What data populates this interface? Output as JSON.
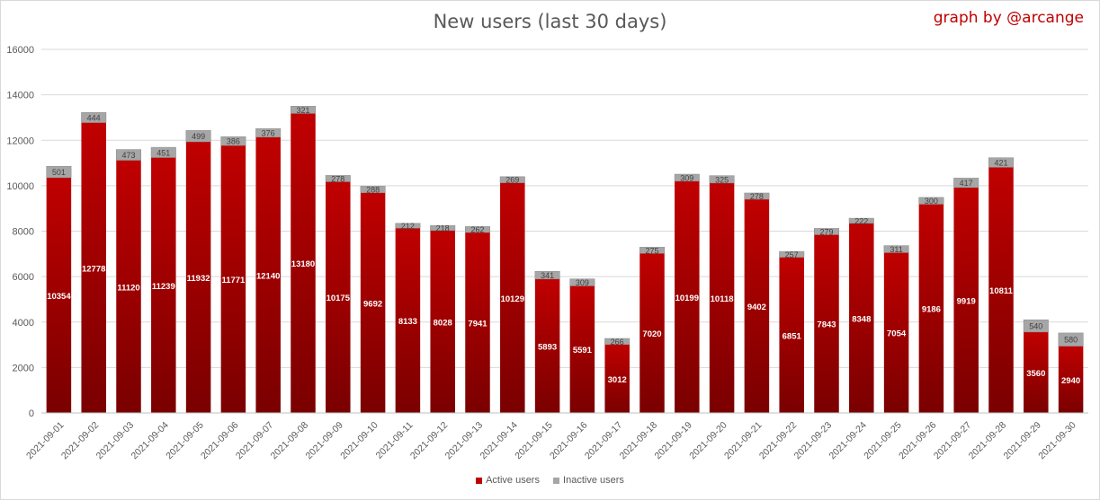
{
  "title": "New users (last 30 days)",
  "credit": "graph by @arcange",
  "colors": {
    "active": "#c00000",
    "active_dark": "#7a0000",
    "inactive": "#a6a6a6",
    "grid": "#d9d9d9",
    "axis_text": "#595959"
  },
  "legend": {
    "active_label": "Active users",
    "inactive_label": "Inactive users"
  },
  "chart_data": {
    "type": "bar",
    "stacked": true,
    "title": "New users (last 30 days)",
    "categories": [
      "2021-09-01",
      "2021-09-02",
      "2021-09-03",
      "2021-09-04",
      "2021-09-05",
      "2021-09-06",
      "2021-09-07",
      "2021-09-08",
      "2021-09-09",
      "2021-09-10",
      "2021-09-11",
      "2021-09-12",
      "2021-09-13",
      "2021-09-14",
      "2021-09-15",
      "2021-09-16",
      "2021-09-17",
      "2021-09-18",
      "2021-09-19",
      "2021-09-20",
      "2021-09-21",
      "2021-09-22",
      "2021-09-23",
      "2021-09-24",
      "2021-09-25",
      "2021-09-26",
      "2021-09-27",
      "2021-09-28",
      "2021-09-29",
      "2021-09-30"
    ],
    "series": [
      {
        "name": "Active users",
        "values": [
          10354,
          12778,
          11120,
          11239,
          11932,
          11771,
          12140,
          13180,
          10175,
          9692,
          8133,
          8028,
          7941,
          10129,
          5893,
          5591,
          3012,
          7020,
          10199,
          10118,
          9402,
          6851,
          7843,
          8348,
          7054,
          9186,
          9919,
          10811,
          3560,
          2940
        ]
      },
      {
        "name": "Inactive users",
        "values": [
          501,
          444,
          473,
          451,
          499,
          386,
          376,
          321,
          278,
          288,
          212,
          218,
          262,
          269,
          341,
          309,
          266,
          275,
          309,
          325,
          278,
          257,
          279,
          222,
          311,
          300,
          417,
          421,
          540,
          580
        ]
      }
    ],
    "ylim": [
      0,
      16000
    ],
    "yticks": [
      "0",
      "2000",
      "4000",
      "6000",
      "8000",
      "10000",
      "12000",
      "14000",
      "16000"
    ],
    "grid": true,
    "legend_position": "bottom"
  }
}
